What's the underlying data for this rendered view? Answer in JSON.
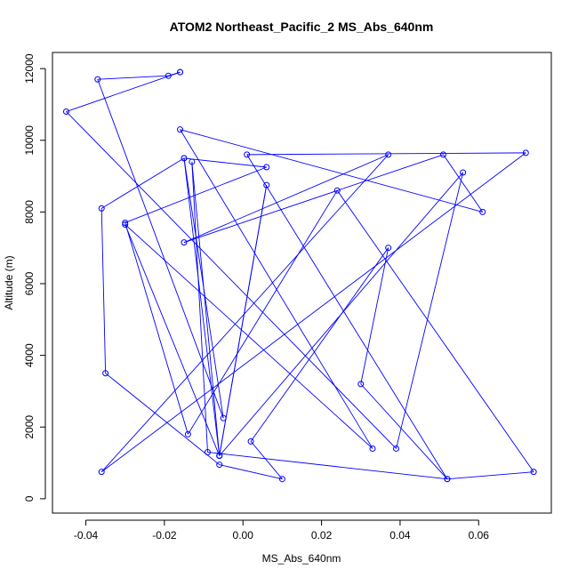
{
  "chart_data": {
    "type": "line",
    "title": "ATOM2 Northeast_Pacific_2 MS_Abs_640nm",
    "xlabel": "MS_Abs_640nm",
    "ylabel": "Altitude (m)",
    "xlim": [
      -0.0485,
      0.0785
    ],
    "ylim": [
      -400,
      12450
    ],
    "xticks": [
      -0.04,
      -0.02,
      0.0,
      0.02,
      0.04,
      0.06
    ],
    "xtick_labels": [
      "-0.04",
      "-0.02",
      "0.00",
      "0.02",
      "0.04",
      "0.06"
    ],
    "yticks": [
      0,
      2000,
      4000,
      6000,
      8000,
      10000,
      12000
    ],
    "ytick_labels": [
      "0",
      "2000",
      "4000",
      "6000",
      "8000",
      "10000",
      "12000"
    ],
    "grid": false,
    "series_color": "#0000ff",
    "markers": "open-circle",
    "series": [
      {
        "points": [
          [
            -0.016,
            11900
          ],
          [
            -0.019,
            11800
          ],
          [
            -0.037,
            11700
          ],
          [
            -0.005,
            2250
          ],
          [
            -0.015,
            9500
          ],
          [
            0.006,
            9250
          ],
          [
            -0.03,
            7700
          ],
          [
            -0.014,
            1800
          ],
          [
            0.024,
            8600
          ],
          [
            0.074,
            750
          ],
          [
            0.052,
            550
          ],
          [
            0.03,
            3200
          ],
          [
            0.037,
            7000
          ],
          [
            0.002,
            1600
          ],
          [
            0.01,
            550
          ],
          [
            -0.006,
            950
          ],
          [
            -0.035,
            3500
          ],
          [
            -0.036,
            8100
          ],
          [
            -0.015,
            9500
          ],
          [
            -0.006,
            1200
          ],
          [
            -0.03,
            7650
          ],
          [
            0.033,
            1400
          ],
          [
            -0.016,
            10300
          ],
          [
            0.061,
            8000
          ],
          [
            0.051,
            9600
          ],
          [
            -0.015,
            7150
          ],
          [
            0.037,
            9600
          ],
          [
            -0.036,
            750
          ],
          [
            0.072,
            9650
          ],
          [
            0.001,
            9600
          ],
          [
            0.052,
            550
          ],
          [
            -0.009,
            1300
          ],
          [
            -0.013,
            9400
          ],
          [
            -0.006,
            1200
          ],
          [
            0.006,
            8750
          ],
          [
            -0.006,
            1200
          ],
          [
            0.056,
            9100
          ],
          [
            0.039,
            1400
          ],
          [
            -0.045,
            10800
          ],
          [
            -0.016,
            11900
          ]
        ]
      }
    ]
  }
}
